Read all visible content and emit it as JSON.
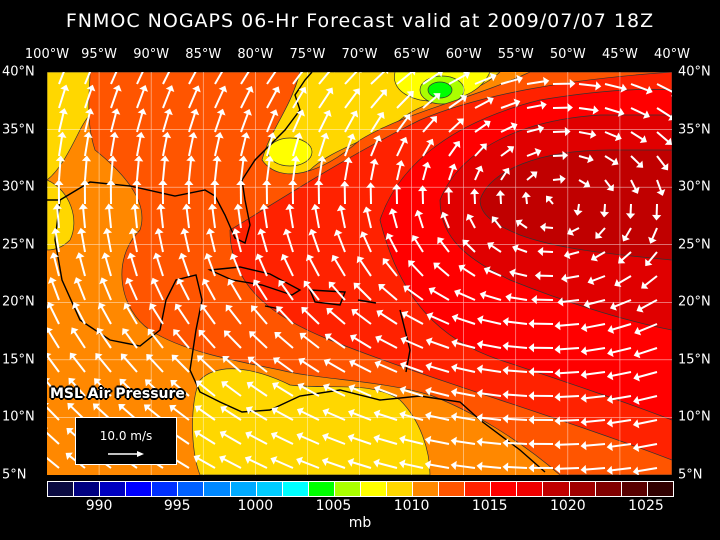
{
  "title": "FNMOC NOGAPS 06-Hr Forecast valid at 2009/07/07 18Z",
  "longitude_labels": [
    "100°W",
    "95°W",
    "90°W",
    "85°W",
    "80°W",
    "75°W",
    "70°W",
    "65°W",
    "60°W",
    "55°W",
    "50°W",
    "45°W",
    "40°W"
  ],
  "latitude_labels": [
    "40°N",
    "35°N",
    "30°N",
    "25°N",
    "20°N",
    "15°N",
    "10°N",
    "5°N"
  ],
  "map_extent": {
    "lon": [
      -100,
      -40
    ],
    "lat": [
      5,
      40
    ]
  },
  "field_label": "MSL Air Pressure",
  "wind_reference": {
    "label": "10.0 m/s"
  },
  "colorbar": {
    "unit": "mb",
    "tick_labels": [
      "990",
      "995",
      "1000",
      "1005",
      "1010",
      "1015",
      "1020",
      "1025"
    ],
    "colors": [
      "#0a0a40",
      "#000080",
      "#0000c0",
      "#0000ff",
      "#0030ff",
      "#0060ff",
      "#0088ff",
      "#00aaff",
      "#00ccff",
      "#00ffff",
      "#00ff00",
      "#aaff00",
      "#ffff00",
      "#ffd700",
      "#ff8800",
      "#ff5500",
      "#ff2200",
      "#ff0000",
      "#ee0000",
      "#c00000",
      "#a00000",
      "#800000",
      "#580000",
      "#300000"
    ]
  },
  "colors": {
    "land_outline": "#000000",
    "wind_vectors": "#ffffff",
    "grid": "#ffffff"
  }
}
